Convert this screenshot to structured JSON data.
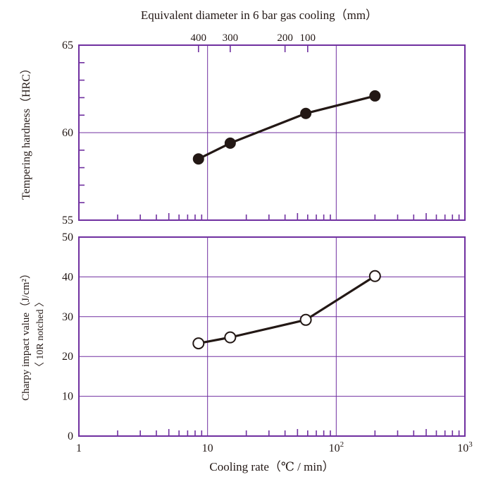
{
  "colors": {
    "frame": "#7030a0",
    "grid": "#7030a0",
    "series": "#231815",
    "text": "#231815",
    "open_marker_fill": "#ffffff"
  },
  "chart_data": [
    {
      "type": "line",
      "panel": "top",
      "ylabel": "Tempering hardness（HRC）",
      "secondary_xlabel": "Equivalent diameter in 6 bar gas cooling（mm）",
      "secondary_x_ticks": [
        {
          "label": "400",
          "cooling_rate": 8.5
        },
        {
          "label": "300",
          "cooling_rate": 15
        },
        {
          "label": "200",
          "cooling_rate": 40
        },
        {
          "label": "100",
          "cooling_rate": 60
        }
      ],
      "xscale": "log",
      "xlim": [
        1,
        1000
      ],
      "ylim": [
        55,
        65
      ],
      "yticks": [
        "65",
        "60",
        "55"
      ],
      "grid": true,
      "marker": "filled-circle",
      "series": [
        {
          "x": [
            8.5,
            15,
            58,
            200
          ],
          "y": [
            58.5,
            59.4,
            61.1,
            62.1
          ]
        }
      ]
    },
    {
      "type": "line",
      "panel": "bottom",
      "ylabel": "Charpy impact value（J/cm²）",
      "ylabel2": "〈 10R notched 〉",
      "xlabel": "Cooling rate（℃ / min）",
      "xscale": "log",
      "xlim": [
        1,
        1000
      ],
      "ylim": [
        0,
        50
      ],
      "yticks": [
        "50",
        "40",
        "30",
        "20",
        "10",
        "0"
      ],
      "xticks": [
        {
          "value": 1,
          "base": "1",
          "exp": ""
        },
        {
          "value": 10,
          "base": "10",
          "exp": ""
        },
        {
          "value": 100,
          "base": "10",
          "exp": "2"
        },
        {
          "value": 1000,
          "base": "10",
          "exp": "3"
        }
      ],
      "grid": true,
      "marker": "open-circle",
      "series": [
        {
          "x": [
            8.5,
            15,
            58,
            200
          ],
          "y": [
            23.3,
            24.8,
            29.2,
            40.2
          ]
        }
      ]
    }
  ]
}
